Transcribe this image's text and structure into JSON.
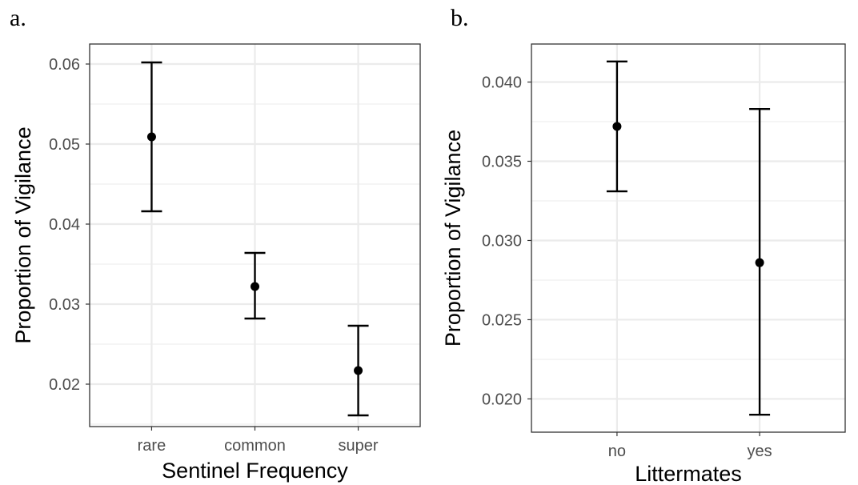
{
  "chart_data": [
    {
      "type": "scatter",
      "panel_label": "a.",
      "xlabel": "Sentinel Frequency",
      "ylabel": "Proportion of Vigilance",
      "categories": [
        "rare",
        "common",
        "super"
      ],
      "values": [
        0.0509,
        0.0322,
        0.0217
      ],
      "ci_low": [
        0.0416,
        0.0282,
        0.0161
      ],
      "ci_high": [
        0.0602,
        0.0364,
        0.0273
      ],
      "ylim": [
        0.0147,
        0.0625
      ],
      "yticks": [
        0.02,
        0.03,
        0.04,
        0.05,
        0.06
      ],
      "ytick_labels": [
        "0.02",
        "0.03",
        "0.04",
        "0.05",
        "0.06"
      ],
      "grid": true,
      "error_bars": true
    },
    {
      "type": "scatter",
      "panel_label": "b.",
      "xlabel": "Littermates",
      "ylabel": "Proportion of Vigilance",
      "categories": [
        "no",
        "yes"
      ],
      "values": [
        0.0372,
        0.0286
      ],
      "ci_low": [
        0.0331,
        0.019
      ],
      "ci_high": [
        0.0413,
        0.0383
      ],
      "ylim": [
        0.0179,
        0.0424
      ],
      "yticks": [
        0.02,
        0.025,
        0.03,
        0.035,
        0.04
      ],
      "ytick_labels": [
        "0.020",
        "0.025",
        "0.030",
        "0.035",
        "0.040"
      ],
      "grid": true,
      "error_bars": true
    }
  ],
  "colors": {
    "point": "#000000",
    "gridline": "#ebebeb",
    "panel_border": "#333333",
    "tick_text": "#4d4d4d"
  }
}
